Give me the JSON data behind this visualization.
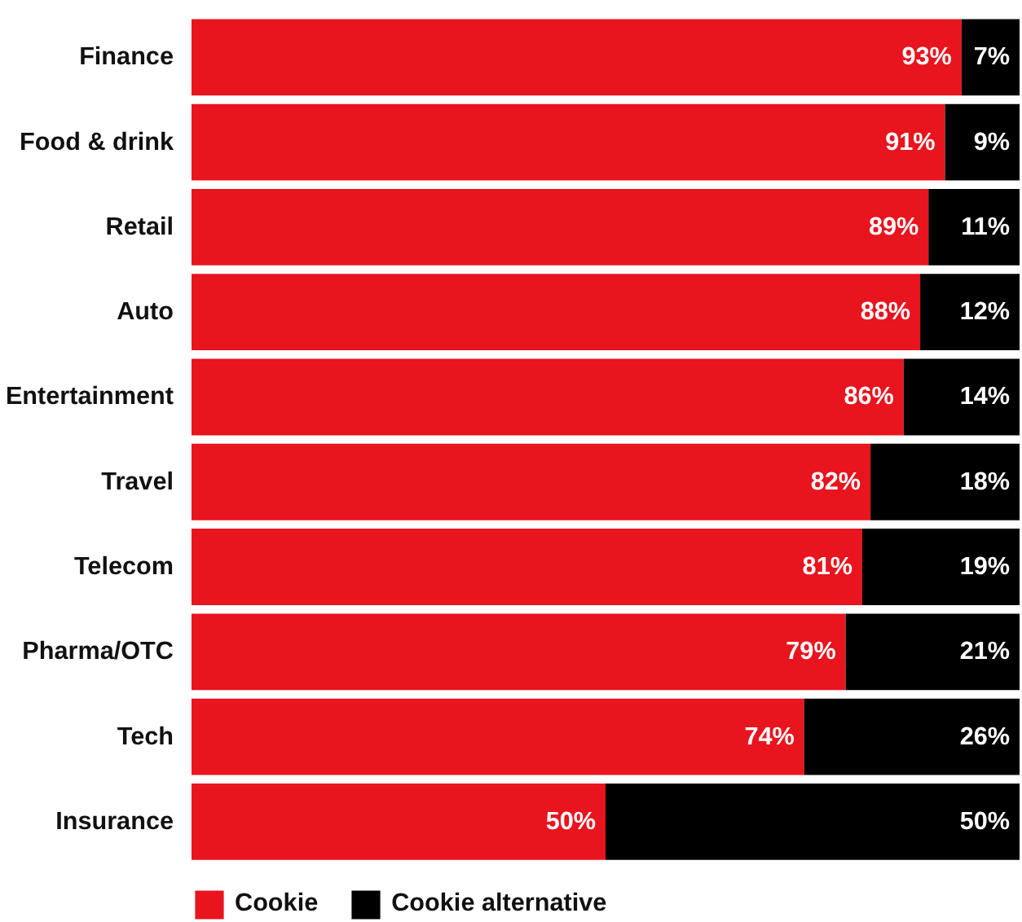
{
  "chart_data": {
    "type": "bar",
    "orientation": "horizontal",
    "stacked": true,
    "categories": [
      "Finance",
      "Food & drink",
      "Retail",
      "Auto",
      "Entertainment",
      "Travel",
      "Telecom",
      "Pharma/OTC",
      "Tech",
      "Insurance"
    ],
    "series": [
      {
        "name": "Cookie",
        "color": "#e8141e",
        "values": [
          93,
          91,
          89,
          88,
          86,
          82,
          81,
          79,
          74,
          50
        ],
        "value_labels": [
          "93%",
          "91%",
          "89%",
          "88%",
          "86%",
          "82%",
          "81%",
          "79%",
          "74%",
          "50%"
        ]
      },
      {
        "name": "Cookie alternative",
        "color": "#000000",
        "values": [
          7,
          9,
          11,
          12,
          14,
          18,
          19,
          21,
          26,
          50
        ],
        "value_labels": [
          "7%",
          "9%",
          "11%",
          "12%",
          "14%",
          "18%",
          "19%",
          "21%",
          "26%",
          "50%"
        ]
      }
    ],
    "xlim": [
      0,
      100
    ],
    "tick_labels": "y",
    "grid": false,
    "legend": "bottom left"
  }
}
